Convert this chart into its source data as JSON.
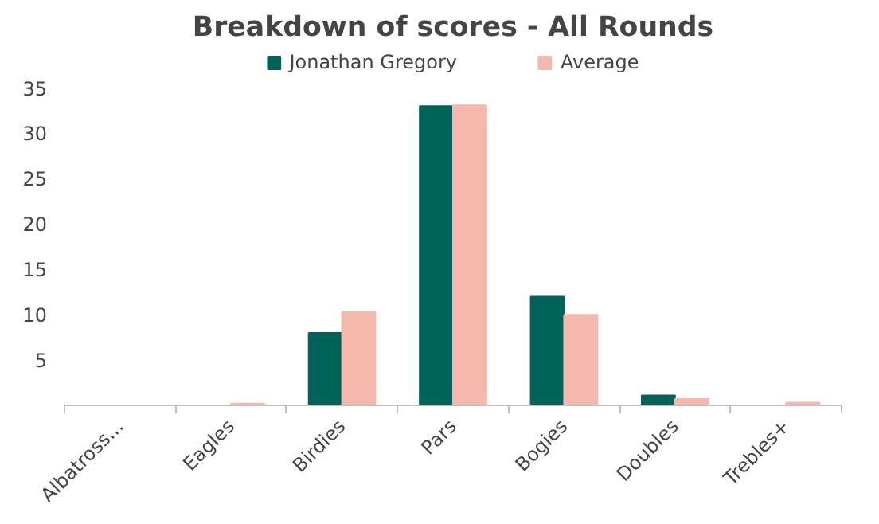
{
  "chart_data": {
    "type": "bar",
    "title": "Breakdown of scores - All Rounds",
    "categories": [
      "Albatross...",
      "Eagles",
      "Birdies",
      "Pars",
      "Bogies",
      "Doubles",
      "Trebles+"
    ],
    "series": [
      {
        "name": "Jonathan Gregory",
        "color": "#00635a",
        "values": [
          0,
          0,
          8,
          33,
          12,
          1.1,
          0
        ]
      },
      {
        "name": "Average",
        "color": "#f4b8ac",
        "values": [
          0,
          0.2,
          10.3,
          33.1,
          10,
          0.7,
          0.3
        ]
      }
    ],
    "ylim": [
      0,
      35
    ],
    "yticks": [
      5,
      10,
      15,
      20,
      25,
      30,
      35
    ],
    "grid": false,
    "legend": "top"
  }
}
